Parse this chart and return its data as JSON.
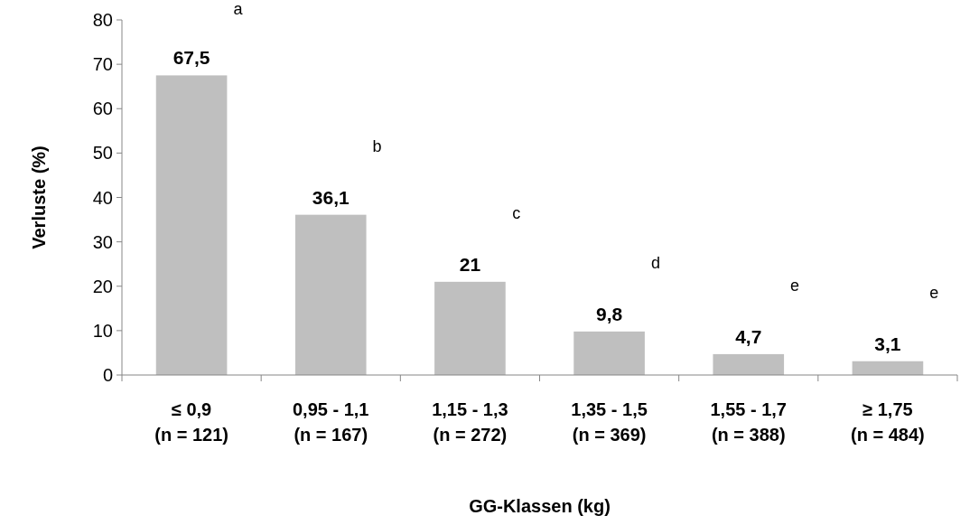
{
  "chart_data": {
    "type": "bar",
    "xlabel": "GG-Klassen (kg)",
    "ylabel": "Verluste (%)",
    "categories": [
      "≤ 0,9\n(n = 121)",
      "0,95 - 1,1\n(n = 167)",
      "1,15 - 1,3\n(n = 272)",
      "1,35 - 1,5\n(n = 369)",
      "1,55 - 1,7\n(n = 388)",
      "≥ 1,75\n(n = 484)"
    ],
    "values": [
      67.5,
      36.1,
      21,
      9.8,
      4.7,
      3.1
    ],
    "value_labels": [
      "67,5",
      "36,1",
      "21",
      "9,8",
      "4,7",
      "3,1"
    ],
    "color": "#bfbfbf",
    "ylim": [
      0,
      80
    ],
    "yticks": [
      0,
      10,
      20,
      30,
      40,
      50,
      60,
      70,
      80
    ],
    "grid": false,
    "annotations": [
      "a",
      "b",
      "c",
      "d",
      "e",
      "e"
    ]
  }
}
